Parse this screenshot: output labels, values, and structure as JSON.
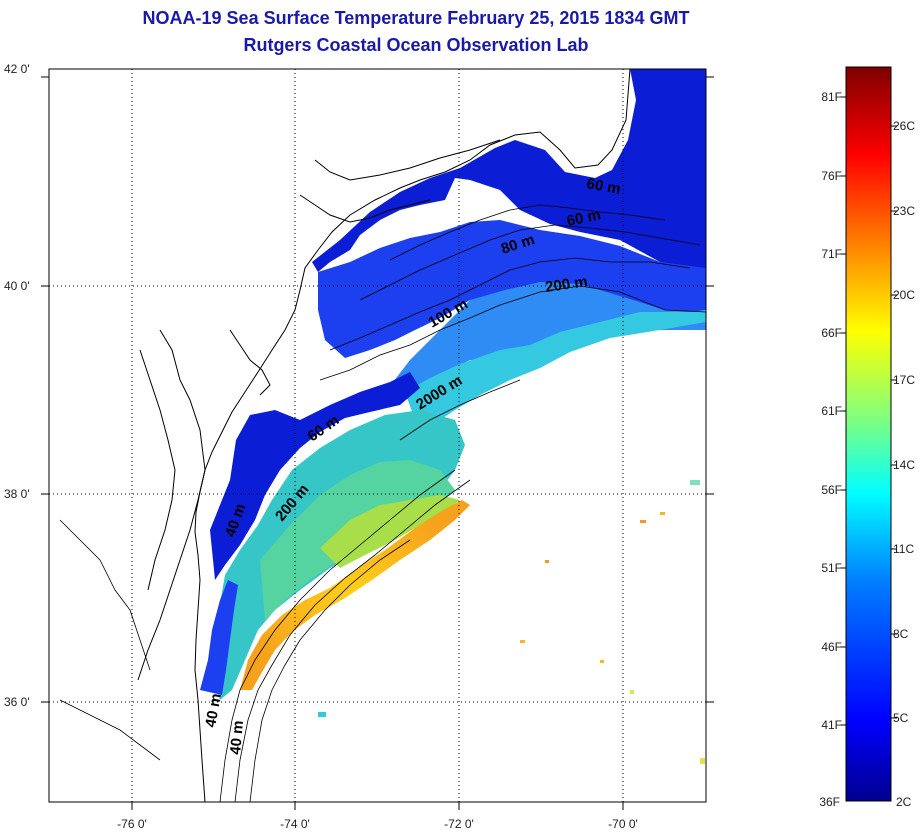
{
  "title": "NOAA-19 Sea Surface Temperature February 25, 2015 1834 GMT",
  "subtitle": "Rutgers Coastal Ocean Observation Lab",
  "map": {
    "lat_labels": [
      "42 0'",
      "40 0'",
      "38 0'",
      "36 0'"
    ],
    "lon_labels": [
      "-76 0'",
      "-74 0'",
      "-72 0'",
      "-70 0'"
    ],
    "contour_labels": [
      "60 m",
      "80 m",
      "200 m",
      "100 m",
      "2000 m",
      "60 m",
      "200 m",
      "40 m",
      "40 m",
      "40 m",
      "60 m"
    ],
    "land_color": "#ffffff",
    "coastline_color": "#000000"
  },
  "colorbar": {
    "fahrenheit_labels": [
      "81F",
      "76F",
      "71F",
      "66F",
      "61F",
      "56F",
      "51F",
      "46F",
      "41F",
      "36F"
    ],
    "celsius_labels": [
      "26C",
      "23C",
      "20C",
      "17C",
      "14C",
      "11C",
      "8C",
      "5C",
      "2C"
    ],
    "colors": [
      "#7f0000",
      "#ff0000",
      "#ff7f00",
      "#ffff00",
      "#7fff7f",
      "#00ffff",
      "#007fff",
      "#0000ff",
      "#00008f"
    ]
  }
}
